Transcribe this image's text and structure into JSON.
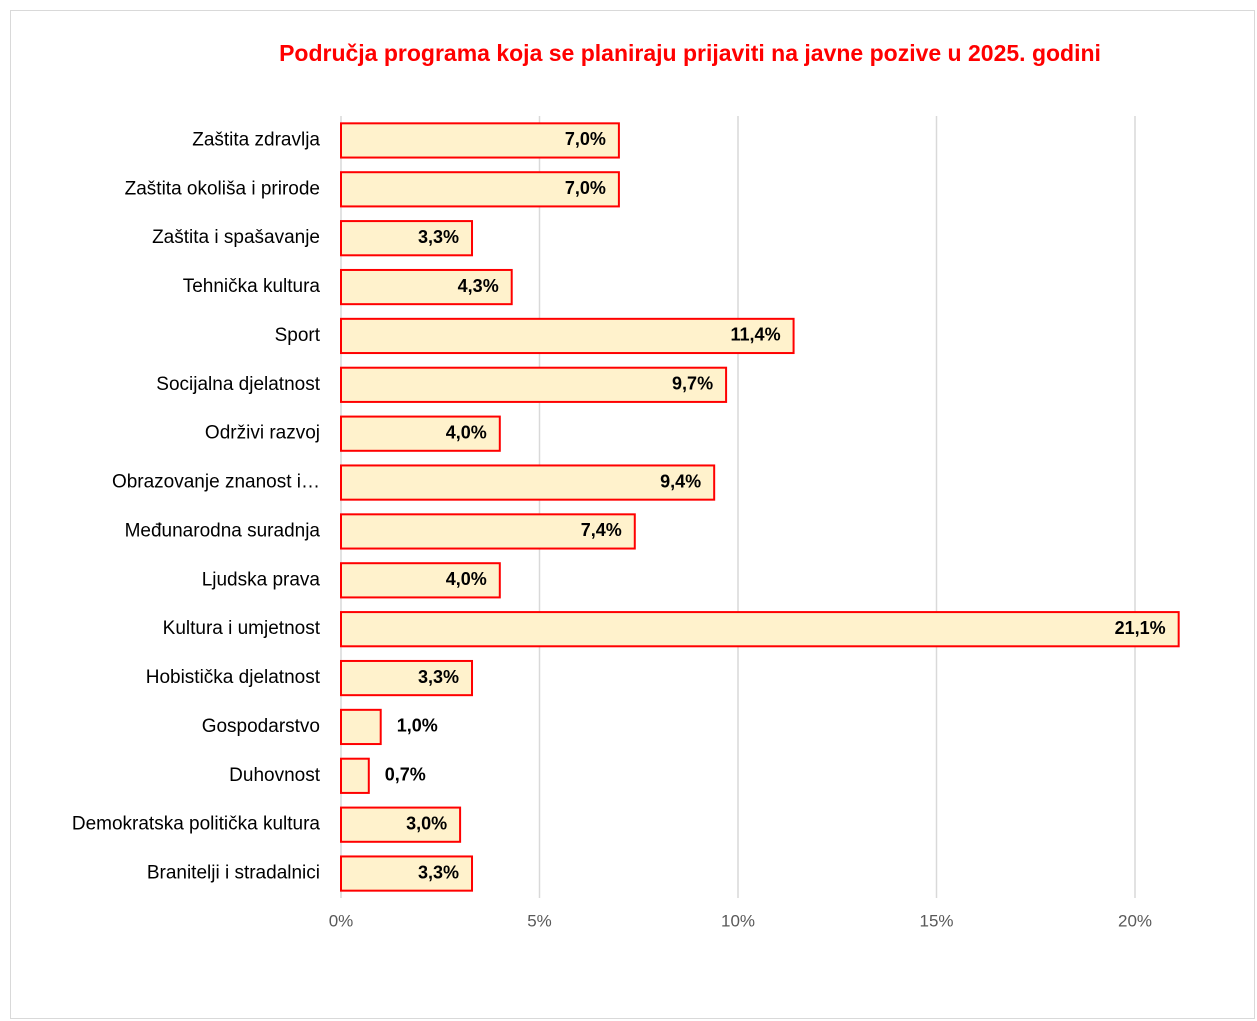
{
  "chart_data": {
    "type": "hbar",
    "title": "Područja programa koja se planiraju prijaviti na javne pozive u 2025. godini",
    "categories": [
      "Zaštita zdravlja",
      "Zaštita okoliša i prirode",
      "Zaštita i spašavanje",
      "Tehnička kultura",
      "Sport",
      "Socijalna djelatnost",
      "Održivi razvoj",
      "Obrazovanje znanost i…",
      "Međunarodna suradnja",
      "Ljudska prava",
      "Kultura i umjetnost",
      "Hobistička djelatnost",
      "Gospodarstvo",
      "Duhovnost",
      "Demokratska politička kultura",
      "Branitelji i stradalnici"
    ],
    "values": [
      7.0,
      7.0,
      3.3,
      4.3,
      11.4,
      9.7,
      4.0,
      9.4,
      7.4,
      4.0,
      21.1,
      3.3,
      1.0,
      0.7,
      3.0,
      3.3
    ],
    "value_labels": [
      "7,0%",
      "7,0%",
      "3,3%",
      "4,3%",
      "11,4%",
      "9,7%",
      "4,0%",
      "9,4%",
      "7,4%",
      "4,0%",
      "21,1%",
      "3,3%",
      "1,0%",
      "0,7%",
      "3,0%",
      "3,3%"
    ],
    "color": "#fff2cc",
    "edgecolor": "#ff0000",
    "xlim": [
      0,
      22
    ],
    "xticks": [
      {
        "value": 0,
        "label": "0%"
      },
      {
        "value": 5,
        "label": "5%"
      },
      {
        "value": 10,
        "label": "10%"
      },
      {
        "value": 15,
        "label": "15%"
      },
      {
        "value": 20,
        "label": "20%"
      }
    ],
    "grid": true
  }
}
